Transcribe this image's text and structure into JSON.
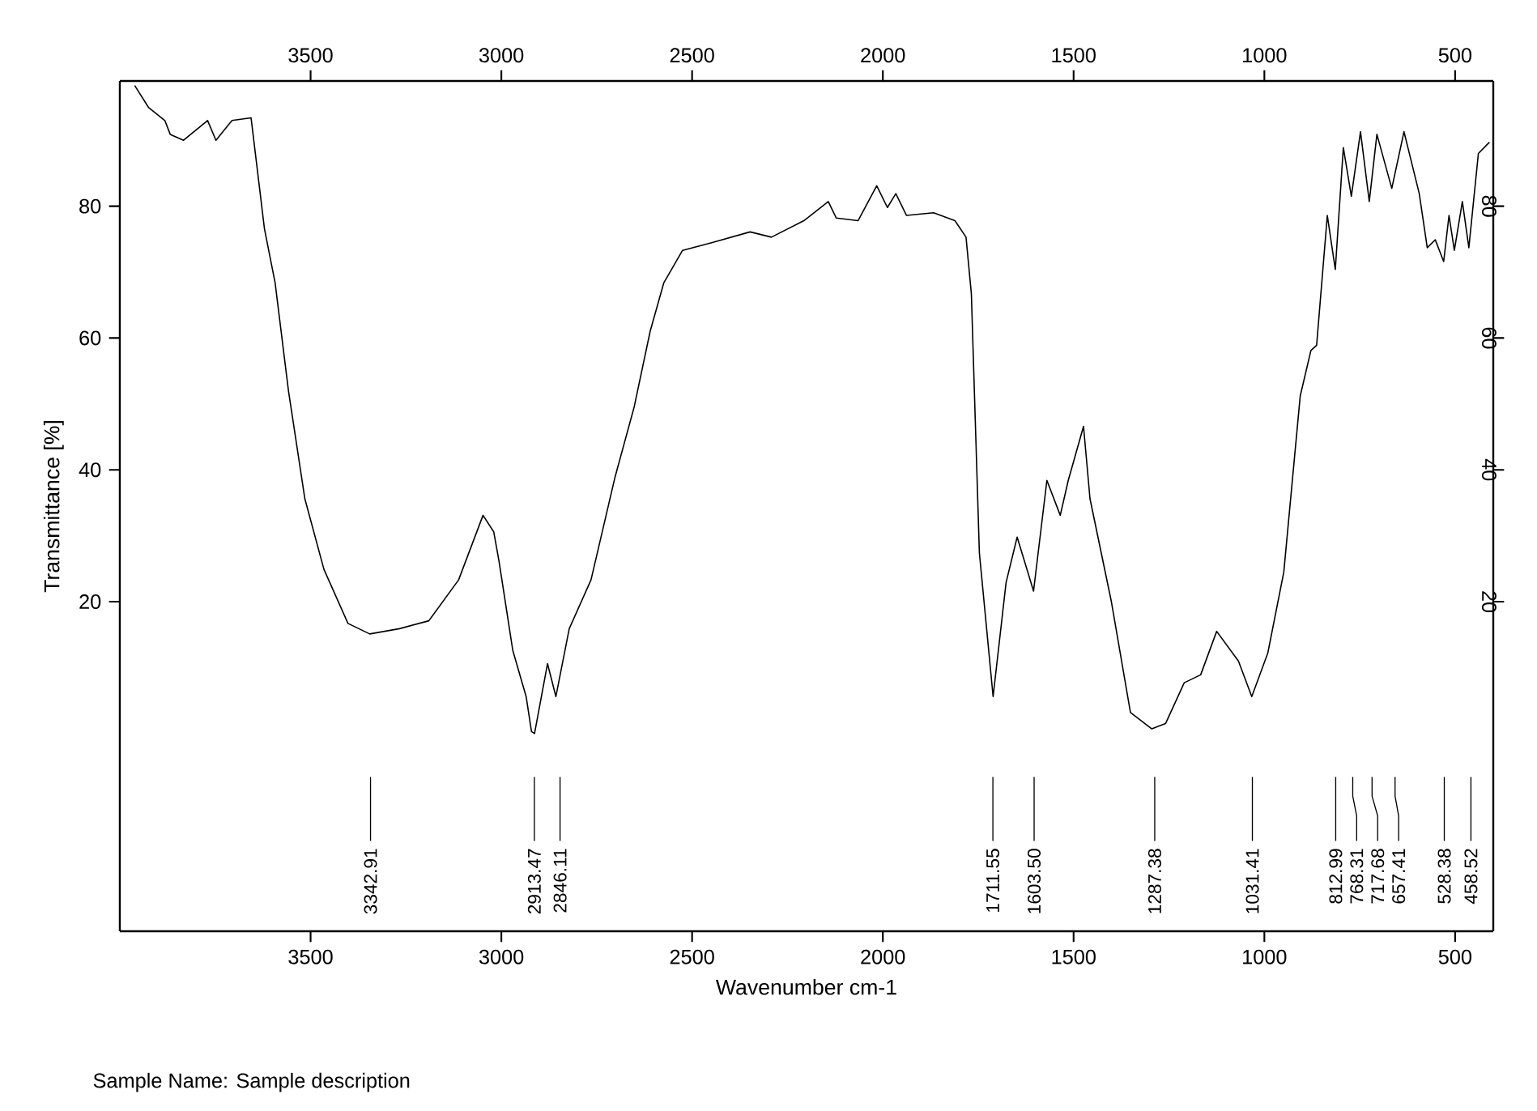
{
  "chart_data": {
    "type": "line",
    "xlabel": "Wavenumber cm-1",
    "ylabel": "Transmittance [%]",
    "xlim": [
      4000,
      400
    ],
    "xticks": [
      3500,
      3000,
      2500,
      2000,
      1500,
      1000,
      500
    ],
    "x2lim": [
      4000,
      400
    ],
    "x2ticks": [
      3500,
      3000,
      2500,
      2000,
      1500,
      1000,
      500
    ],
    "ylim": [
      -30,
      99
    ],
    "yticks": [
      20,
      40,
      60,
      80
    ],
    "y2lim": [
      -30,
      99
    ],
    "y2ticks": [
      20,
      40,
      60,
      80
    ],
    "series": [
      {
        "color": "#000000",
        "x": [
          3961,
          3925,
          3882,
          3868,
          3833,
          3770,
          3748,
          3706,
          3656,
          3621,
          3593,
          3558,
          3515,
          3465,
          3402,
          3345,
          3267,
          3190,
          3112,
          3048,
          3020,
          3006,
          2970,
          2935,
          2921,
          2913,
          2879,
          2857,
          2822,
          2765,
          2702,
          2652,
          2610,
          2574,
          2525,
          2447,
          2348,
          2292,
          2207,
          2143,
          2122,
          2065,
          2016,
          1988,
          1966,
          1938,
          1867,
          1811,
          1782,
          1768,
          1747,
          1711,
          1677,
          1648,
          1605,
          1570,
          1535,
          1514,
          1474,
          1457,
          1401,
          1351,
          1295,
          1259,
          1210,
          1167,
          1125,
          1068,
          1033,
          991,
          949,
          906,
          878,
          863,
          835,
          814,
          793,
          772,
          748,
          725,
          705,
          666,
          634,
          594,
          573,
          552,
          530,
          516,
          502,
          481,
          464,
          439,
          410
        ],
        "values": [
          98.3,
          95,
          93,
          90.9,
          90,
          93,
          90,
          93,
          93.4,
          76.6,
          68.4,
          52,
          35.6,
          24.9,
          16.7,
          15.1,
          15.9,
          17.1,
          23.3,
          33.1,
          30.6,
          26.1,
          12.6,
          5.6,
          0.3,
          0,
          10.6,
          5.6,
          15.9,
          23.3,
          38.9,
          49.5,
          61,
          68.4,
          73.3,
          74.5,
          76.1,
          75.3,
          77.8,
          80.7,
          78.2,
          77.8,
          83.1,
          79.8,
          81.9,
          78.6,
          79,
          77.8,
          75.3,
          66.7,
          27.4,
          5.6,
          22.9,
          29.8,
          21.6,
          38.4,
          33.1,
          38.4,
          46.6,
          35.6,
          20,
          3.2,
          0.7,
          1.5,
          7.7,
          8.9,
          15.5,
          11,
          5.6,
          12.2,
          24.5,
          51.2,
          58.1,
          58.9,
          78.6,
          70.4,
          88.9,
          81.5,
          91.3,
          80.7,
          90.9,
          82.7,
          91.3,
          81.9,
          73.7,
          74.9,
          71.6,
          78.6,
          73.3,
          80.7,
          73.7,
          88,
          89.7
        ]
      }
    ],
    "annotations": [
      {
        "text": "3342.91",
        "x": 3342.91
      },
      {
        "text": "2913.47",
        "x": 2913.47
      },
      {
        "text": "2846.11",
        "x": 2846.11
      },
      {
        "text": "1711.55",
        "x": 1711.55
      },
      {
        "text": "1603.50",
        "x": 1603.5
      },
      {
        "text": "1287.38",
        "x": 1287.38
      },
      {
        "text": "1031.41",
        "x": 1031.41
      },
      {
        "text": "812.99",
        "x": 812.99
      },
      {
        "text": "768.31",
        "x": 768.31
      },
      {
        "text": "717.68",
        "x": 717.68
      },
      {
        "text": "657.41",
        "x": 657.41
      },
      {
        "text": "528.38",
        "x": 528.38
      },
      {
        "text": "458.52",
        "x": 458.52
      },
      "Sample Name: Sample description"
    ]
  }
}
